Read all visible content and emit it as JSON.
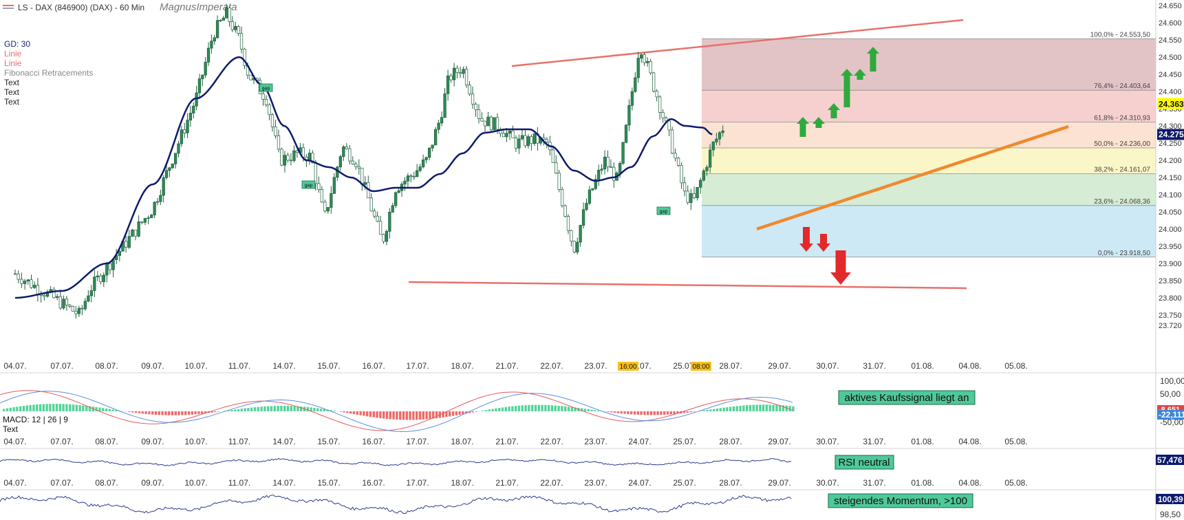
{
  "header": {
    "title": "LS - DAX (846900) (DAX) - 60 Min",
    "watermark": "MagnusImperata"
  },
  "legend": [
    "GD: 30",
    "Linie",
    "Linie",
    "Fibonacci Retracements",
    "Text",
    "Text",
    "Text"
  ],
  "colors": {
    "candle": "#2e8b57",
    "ma": "#0d1a6b",
    "trend_red": "#e8716b",
    "trend_orange": "#f0892d",
    "signal_bg": "#4fc89a",
    "up_arrow": "#2eaa3c",
    "down_arrow": "#e22a2a",
    "price_badge": "#ffff00",
    "ma_badge": "#0d1a6b"
  },
  "chart_data": [
    {
      "type": "line",
      "name": "price-panel",
      "y_ticks": [
        "24.650",
        "24.600",
        "24.550",
        "24.500",
        "24.450",
        "24.400",
        "24.350",
        "24.300",
        "24.250",
        "24.200",
        "24.150",
        "24.100",
        "24.050",
        "24.000",
        "23.950",
        "23.900",
        "23.850",
        "23.800",
        "23.750",
        "23.720"
      ],
      "ylim": [
        23720,
        24650
      ],
      "x_ticks": [
        "04.07.",
        "07.07.",
        "08.07.",
        "09.07.",
        "10.07.",
        "11.07.",
        "14.07.",
        "15.07.",
        "16.07.",
        "17.07.",
        "18.07.",
        "21.07.",
        "22.07.",
        "23.07.",
        "24.07.",
        "25.07.",
        "28.07.",
        "29.07.",
        "30.07.",
        "31.07.",
        "01.08.",
        "04.08.",
        "05.08."
      ],
      "session_markers": [
        "16:00",
        "08:00"
      ],
      "close_path": [
        [
          0,
          23870
        ],
        [
          1.4,
          23750
        ],
        [
          1.6,
          23820
        ],
        [
          3,
          24060
        ],
        [
          4,
          24380
        ],
        [
          4.4,
          24570
        ],
        [
          4.7,
          24625
        ],
        [
          5,
          24550
        ],
        [
          5.2,
          24450
        ],
        [
          5.6,
          24380
        ],
        [
          5.9,
          24200
        ],
        [
          6.3,
          24220
        ],
        [
          6.6,
          24210
        ],
        [
          6.9,
          24030
        ],
        [
          7.3,
          24240
        ],
        [
          7.6,
          24200
        ],
        [
          7.9,
          24080
        ],
        [
          8.2,
          23960
        ],
        [
          8.5,
          24120
        ],
        [
          8.9,
          24160
        ],
        [
          9.2,
          24200
        ],
        [
          9.5,
          24320
        ],
        [
          9.7,
          24440
        ],
        [
          10,
          24470
        ],
        [
          10.4,
          24320
        ],
        [
          10.8,
          24300
        ],
        [
          11.2,
          24250
        ],
        [
          11.6,
          24260
        ],
        [
          11.9,
          24250
        ],
        [
          12.3,
          24050
        ],
        [
          12.5,
          23940
        ],
        [
          12.8,
          24080
        ],
        [
          13.2,
          24200
        ],
        [
          13.5,
          24140
        ],
        [
          14,
          24540
        ],
        [
          14.4,
          24380
        ],
        [
          14.7,
          24250
        ],
        [
          15,
          24100
        ],
        [
          15.2,
          24080
        ],
        [
          15.6,
          24240
        ],
        [
          15.9,
          24310
        ]
      ],
      "moving_average": {
        "label": "GD: 30",
        "points": [
          [
            0,
            23800
          ],
          [
            1,
            23820
          ],
          [
            2,
            23900
          ],
          [
            3,
            24130
          ],
          [
            4,
            24380
          ],
          [
            5,
            24500
          ],
          [
            5.5,
            24420
          ],
          [
            6,
            24300
          ],
          [
            6.5,
            24200
          ],
          [
            7,
            24180
          ],
          [
            7.5,
            24150
          ],
          [
            8,
            24110
          ],
          [
            8.5,
            24120
          ],
          [
            9,
            24120
          ],
          [
            9.5,
            24160
          ],
          [
            10,
            24220
          ],
          [
            10.5,
            24280
          ],
          [
            11,
            24290
          ],
          [
            11.5,
            24290
          ],
          [
            12,
            24240
          ],
          [
            12.5,
            24170
          ],
          [
            13,
            24140
          ],
          [
            13.4,
            24150
          ],
          [
            13.8,
            24180
          ],
          [
            14.3,
            24270
          ],
          [
            14.7,
            24320
          ],
          [
            15,
            24300
          ],
          [
            15.4,
            24295
          ],
          [
            15.6,
            24275
          ]
        ]
      },
      "last_price": "24.363",
      "ma_value": "24.275",
      "gap_labels": [
        "gap",
        "gap",
        "gap"
      ]
    },
    {
      "type": "line",
      "name": "fibonacci-retracement",
      "levels": [
        {
          "ratio": "100,0%",
          "value": 24553.5,
          "label": "100,0% - 24.553,50",
          "fill": "#e3c4c6"
        },
        {
          "ratio": "76,4%",
          "value": 24403.64,
          "label": "76,4% - 24.403,64",
          "fill": "#f6cfcf"
        },
        {
          "ratio": "61,8%",
          "value": 24310.93,
          "label": "61,8% - 24.310,93",
          "fill": "#fbe2d2"
        },
        {
          "ratio": "50,0%",
          "value": 24236.0,
          "label": "50,0% - 24.236,00",
          "fill": "#fbf6c8"
        },
        {
          "ratio": "38,2%",
          "value": 24161.07,
          "label": "38,2% - 24.161,07",
          "fill": "#d6ecd5"
        },
        {
          "ratio": "23,6%",
          "value": 24068.36,
          "label": "23,6% - 24.068,36",
          "fill": "#cde9f6"
        },
        {
          "ratio": "0,0%",
          "value": 23918.5,
          "label": "0,0% - 23.918,50",
          "fill": "#cde9f6"
        }
      ]
    },
    {
      "type": "line",
      "name": "macd-panel",
      "label": "MACD: 12 | 26 | 9",
      "sub_label": "Text",
      "y_ticks": [
        "100,00",
        "50,00",
        "-50,00"
      ],
      "value_badge_1": "-8,651",
      "value_badge_2": "-22,111",
      "signal_text": "aktives Kaufssignal liegt an"
    },
    {
      "type": "line",
      "name": "rsi-panel",
      "value": "57,476",
      "signal_text": "RSI neutral"
    },
    {
      "type": "line",
      "name": "momentum-panel",
      "value": "100,39",
      "low_tick": "98,50",
      "signal_text": "steigendes Momentum, >100"
    }
  ]
}
